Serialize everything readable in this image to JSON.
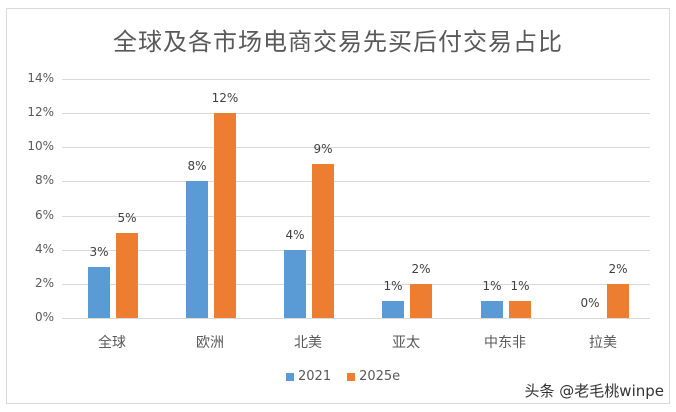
{
  "chart_data": {
    "type": "bar",
    "title": "全球及各市场电商交易先买后付交易占比",
    "categories": [
      "全球",
      "欧洲",
      "北美",
      "亚太",
      "中东非",
      "拉美"
    ],
    "series": [
      {
        "name": "2021",
        "color": "#5b9bd5",
        "values": [
          3,
          8,
          4,
          1,
          1,
          0
        ],
        "labels": [
          "3%",
          "8%",
          "4%",
          "1%",
          "1%",
          "0%"
        ]
      },
      {
        "name": "2025e",
        "color": "#ed7d31",
        "values": [
          5,
          12,
          9,
          2,
          1,
          2
        ],
        "labels": [
          "5%",
          "12%",
          "9%",
          "2%",
          "1%",
          "2%"
        ]
      }
    ],
    "xlabel": "",
    "ylabel": "",
    "ylim": [
      0,
      14
    ],
    "yticks": [
      "0%",
      "2%",
      "4%",
      "6%",
      "8%",
      "10%",
      "12%",
      "14%"
    ],
    "grid": true,
    "legend_position": "bottom"
  },
  "watermark": "头条 @老毛桃winpe"
}
